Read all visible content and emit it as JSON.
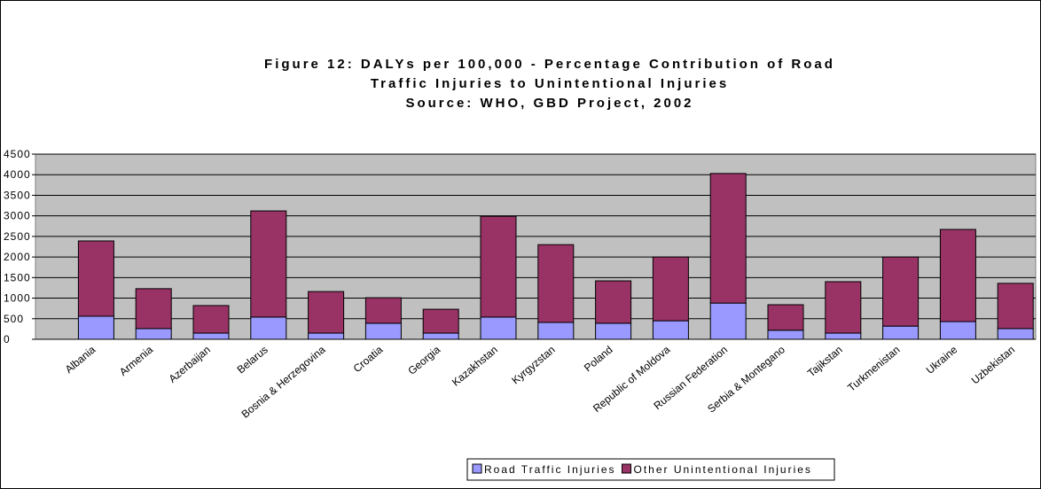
{
  "chart_data": {
    "type": "stacked_bar",
    "title": [
      "Figure 12: DALYs per 100,000 - Percentage Contribution of Road",
      "Traffic Injuries to Unintentional Injuries",
      "Source: WHO, GBD Project, 2002"
    ],
    "categories": [
      "Albania",
      "Armenia",
      "Azerbaijan",
      "Belarus",
      "Bosnia & Herzegovina",
      "Croatia",
      "Georgia",
      "Kazakhstan",
      "Kyrgyzstan",
      "Poland",
      "Republic of Moldova",
      "Russian Federation",
      "Serbia & Montegano",
      "Tajikstan",
      "Turkmenistan",
      "Ukraine",
      "Uzbekistan"
    ],
    "series": [
      {
        "name": "Road Traffic Injuries",
        "color": "#9999ff",
        "values": [
          560,
          260,
          150,
          540,
          150,
          390,
          150,
          540,
          410,
          390,
          450,
          880,
          220,
          150,
          320,
          430,
          260
        ]
      },
      {
        "name": "Other Unintentional Injuries",
        "color": "#993366",
        "values": [
          1830,
          970,
          670,
          2580,
          1010,
          620,
          580,
          2450,
          1890,
          1030,
          1550,
          3150,
          620,
          1250,
          1680,
          2240,
          1100
        ]
      }
    ],
    "ylim": [
      0,
      4500
    ],
    "yticks": [
      0,
      500,
      1000,
      1500,
      2000,
      2500,
      3000,
      3500,
      4000,
      4500
    ],
    "grid": true,
    "legend": "bottom"
  }
}
